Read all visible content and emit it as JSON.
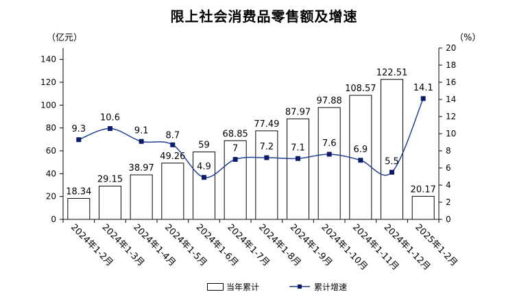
{
  "title": "限上社会消费品零售额及增速",
  "left_unit": "（亿元）",
  "right_unit": "（%）",
  "colors": {
    "bar_fill": "#ffffff",
    "bar_stroke": "#000000",
    "line": "#1f3f8f",
    "marker": "#0d1b6b"
  },
  "legend": {
    "bar_label": "当年累计",
    "line_label": "累计增速"
  },
  "chart_data": {
    "type": "bar",
    "title": "限上社会消费品零售额及增速",
    "categories": [
      "2024年1-2月",
      "2024年1-3月",
      "2024年1-4月",
      "2024年1-5月",
      "2024年1-6月",
      "2024年1-7月",
      "2024年1-8月",
      "2024年1-9月",
      "2024年1-10月",
      "2024年1-11月",
      "2024年1-12月",
      "2025年1-2月"
    ],
    "series": [
      {
        "name": "当年累计",
        "type": "bar",
        "axis": "left",
        "values": [
          18.34,
          29.15,
          38.97,
          49.26,
          59,
          68.85,
          77.49,
          87.97,
          97.88,
          108.57,
          122.51,
          20.17
        ],
        "labels": [
          "18.34",
          "29.15",
          "38.97",
          "49.26",
          "59",
          "68.85",
          "77.49",
          "87.97",
          "97.88",
          "108.57",
          "122.51",
          "20.17"
        ]
      },
      {
        "name": "累计增速",
        "type": "line",
        "axis": "right",
        "values": [
          9.3,
          10.6,
          9.1,
          8.7,
          4.9,
          7,
          7.2,
          7.1,
          7.6,
          6.9,
          5.5,
          14.1
        ],
        "labels": [
          "9.3",
          "10.6",
          "9.1",
          "8.7",
          "4.9",
          "7",
          "7.2",
          "7.1",
          "7.6",
          "6.9",
          "5.5",
          "14.1"
        ]
      }
    ],
    "ylim_left": [
      0,
      150
    ],
    "yticks_left": [
      "0",
      "20",
      "40",
      "60",
      "80",
      "100",
      "120",
      "140"
    ],
    "ylim_right": [
      0,
      20
    ],
    "yticks_right": [
      "0",
      "2",
      "4",
      "6",
      "8",
      "10",
      "12",
      "14",
      "16",
      "18",
      "20"
    ],
    "grid": false,
    "legend_position": "bottom"
  }
}
